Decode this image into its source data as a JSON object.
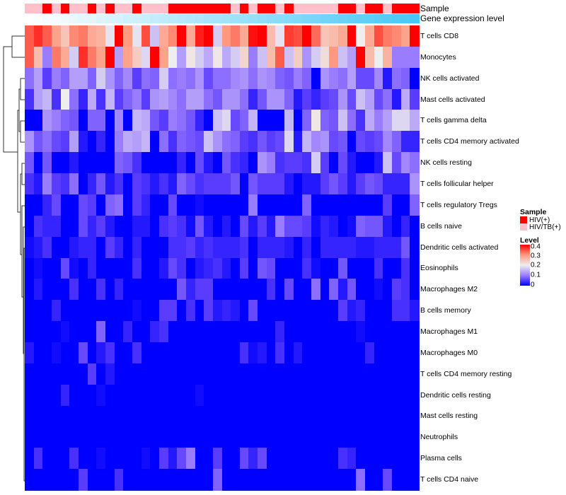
{
  "chart_data": {
    "type": "heatmap",
    "annotations": {
      "sample_label": "Sample",
      "gene_label": "Gene expression level",
      "sample": [
        "HIV/TB(+)",
        "HIV/TB(+)",
        "HIV(+)",
        "HIV/TB(+)",
        "HIV(+)",
        "HIV/TB(+)",
        "HIV/TB(+)",
        "HIV(+)",
        "HIV/TB(+)",
        "HIV(+)",
        "HIV/TB(+)",
        "HIV/TB(+)",
        "HIV(+)",
        "HIV/TB(+)",
        "HIV/TB(+)",
        "HIV/TB(+)",
        "HIV(+)",
        "HIV(+)",
        "HIV(+)",
        "HIV(+)",
        "HIV(+)",
        "HIV(+)",
        "HIV(+)",
        "HIV/TB(+)",
        "HIV(+)",
        "HIV/TB(+)",
        "HIV(+)",
        "HIV(+)",
        "HIV/TB(+)",
        "HIV(+)",
        "HIV/TB(+)",
        "HIV/TB(+)",
        "HIV/TB(+)",
        "HIV/TB(+)",
        "HIV/TB(+)",
        "HIV(+)",
        "HIV(+)",
        "HIV/TB(+)",
        "HIV(+)",
        "HIV(+)",
        "HIV/TB(+)",
        "HIV(+)",
        "HIV(+)",
        "HIV(+)"
      ],
      "gene_expression": [
        0,
        0.02,
        0.05,
        0.07,
        0.09,
        0.12,
        0.14,
        0.16,
        0.19,
        0.21,
        0.23,
        0.26,
        0.28,
        0.3,
        0.33,
        0.35,
        0.37,
        0.4,
        0.42,
        0.44,
        0.47,
        0.49,
        0.51,
        0.53,
        0.56,
        0.58,
        0.6,
        0.63,
        0.65,
        0.67,
        0.7,
        0.72,
        0.74,
        0.77,
        0.79,
        0.81,
        0.84,
        0.86,
        0.88,
        0.91,
        0.93,
        0.95,
        0.98,
        1
      ]
    },
    "rows": [
      {
        "label": "T cells CD8",
        "values": [
          0.34,
          0.37,
          0.34,
          0.29,
          0.25,
          0.31,
          0.32,
          0.28,
          0.27,
          0.19,
          0.4,
          0.3,
          0.19,
          0.35,
          0.16,
          0.28,
          0.31,
          0.4,
          0.28,
          0.38,
          0.4,
          0.17,
          0.3,
          0.32,
          0.28,
          0.39,
          0.4,
          0.26,
          0.19,
          0.36,
          0.35,
          0.4,
          0.33,
          0.25,
          0.26,
          0.28,
          0.4,
          0.2,
          0.28,
          0.35,
          0.32,
          0.31,
          0.29,
          0.4
        ]
      },
      {
        "label": "Monocytes",
        "values": [
          0.34,
          0.26,
          0.1,
          0.32,
          0.28,
          0.17,
          0.37,
          0.32,
          0.29,
          0.4,
          0.13,
          0.29,
          0.24,
          0.18,
          0.4,
          0.29,
          0.2,
          0.13,
          0.21,
          0.17,
          0.14,
          0.21,
          0.14,
          0.17,
          0.23,
          0.1,
          0.16,
          0.26,
          0.34,
          0.16,
          0.24,
          0.12,
          0.17,
          0.22,
          0.3,
          0.16,
          0.13,
          0.4,
          0.26,
          0.2,
          0.27,
          0.1,
          0.1,
          0.1
        ]
      },
      {
        "label": "NK cells activated",
        "values": [
          0.09,
          0.13,
          0.05,
          0.1,
          0.08,
          0.13,
          0.13,
          0.08,
          0.17,
          0.12,
          0.08,
          0.11,
          0.05,
          0.09,
          0.08,
          0.17,
          0.09,
          0.1,
          0.09,
          0.12,
          0.06,
          0.09,
          0.09,
          0.11,
          0.12,
          0.09,
          0.12,
          0.11,
          0.08,
          0.07,
          0.1,
          0.08,
          0,
          0.12,
          0.1,
          0.09,
          0.13,
          0.06,
          0.06,
          0.11,
          0.02,
          0.09,
          0.08,
          0
        ]
      },
      {
        "label": "Mast cells activated",
        "values": [
          0.04,
          0.13,
          0.15,
          0.04,
          0.2,
          0.09,
          0.03,
          0.14,
          0.04,
          0.15,
          0.05,
          0.08,
          0.1,
          0.05,
          0.12,
          0.13,
          0.11,
          0.09,
          0.13,
          0.13,
          0.09,
          0.07,
          0.12,
          0.12,
          0.09,
          0.03,
          0.07,
          0.12,
          0.12,
          0.08,
          0.02,
          0.05,
          0.03,
          0.05,
          0.06,
          0.12,
          0.06,
          0.16,
          0.13,
          0.06,
          0.09,
          0.02,
          0.14,
          0.05
        ]
      },
      {
        "label": "T cells gamma delta",
        "values": [
          0,
          0,
          0.12,
          0.1,
          0.08,
          0.07,
          0,
          0.08,
          0.08,
          0,
          0.11,
          0,
          0.15,
          0.14,
          0.07,
          0.05,
          0.1,
          0.09,
          0.07,
          0.03,
          0,
          0.16,
          0.18,
          0.06,
          0.08,
          0.15,
          0,
          0,
          0,
          0.15,
          0,
          0.08,
          0.21,
          0.08,
          0.07,
          0.16,
          0.09,
          0.04,
          0.14,
          0.1,
          0.13,
          0.18,
          0.18,
          0.14
        ]
      },
      {
        "label": "T cells CD4 memory activated",
        "values": [
          0.12,
          0.07,
          0.09,
          0.06,
          0.05,
          0.13,
          0.02,
          0,
          0.03,
          0,
          0.1,
          0.14,
          0.13,
          0.15,
          0,
          0.09,
          0.04,
          0.08,
          0.07,
          0.06,
          0.16,
          0.12,
          0.09,
          0.08,
          0.05,
          0.04,
          0.07,
          0.05,
          0.06,
          0.18,
          0.02,
          0.15,
          0.11,
          0.12,
          0.06,
          0.07,
          0,
          0.06,
          0.05,
          0.06,
          0.11,
          0.08,
          0.03,
          0.03
        ]
      },
      {
        "label": "NK cells resting",
        "values": [
          0.07,
          0,
          0.07,
          0,
          0,
          0.02,
          0,
          0,
          0,
          0,
          0.08,
          0.07,
          0.04,
          0,
          0,
          0,
          0,
          0.03,
          0,
          0.06,
          0.02,
          0,
          0.07,
          0.04,
          0.03,
          0,
          0.12,
          0.1,
          0.04,
          0.05,
          0.05,
          0.04,
          0.17,
          0.05,
          0,
          0.06,
          0.02,
          0,
          0,
          0.02,
          0.16,
          0.06,
          0.11,
          0.09
        ]
      },
      {
        "label": "T cells follicular helper",
        "values": [
          0.04,
          0.02,
          0.1,
          0.05,
          0.04,
          0.09,
          0,
          0.03,
          0.07,
          0.02,
          0.04,
          0,
          0.05,
          0.04,
          0.02,
          0.04,
          0.02,
          0.08,
          0.06,
          0.04,
          0.05,
          0.05,
          0.05,
          0.07,
          0,
          0.07,
          0.05,
          0.05,
          0.05,
          0.02,
          0,
          0.02,
          0.02,
          0.05,
          0.07,
          0.05,
          0.02,
          0.05,
          0.07,
          0.06,
          0.03,
          0.03,
          0.03,
          0.12
        ]
      },
      {
        "label": "T cells regulatory  Tregs",
        "values": [
          0,
          0,
          0.03,
          0.06,
          0,
          0,
          0.06,
          0.05,
          0,
          0.08,
          0.09,
          0,
          0.05,
          0.03,
          0,
          0,
          0.06,
          0,
          0,
          0.01,
          0,
          0,
          0,
          0,
          0,
          0.1,
          0,
          0,
          0,
          0,
          0,
          0.08,
          0,
          0,
          0,
          0,
          0,
          0,
          0,
          0,
          0.05,
          0,
          0,
          0.08
        ]
      },
      {
        "label": "B cells naive",
        "values": [
          0,
          0.04,
          0.03,
          0.03,
          0,
          0,
          0.06,
          0.03,
          0.05,
          0.02,
          0,
          0,
          0.02,
          0.02,
          0,
          0.04,
          0.05,
          0.04,
          0.01,
          0.07,
          0.02,
          0,
          0.02,
          0,
          0.06,
          0.02,
          0.05,
          0.02,
          0.1,
          0.06,
          0.06,
          0.05,
          0.01,
          0.03,
          0.02,
          0,
          0.01,
          0.08,
          0.07,
          0.07,
          0.02,
          0,
          0.03,
          0
        ]
      },
      {
        "label": "Dendritic cells activated",
        "values": [
          0.01,
          0.02,
          0.04,
          0,
          0,
          0.02,
          0.03,
          0.03,
          0,
          0.05,
          0.03,
          0,
          0.03,
          0,
          0,
          0,
          0.04,
          0.04,
          0.05,
          0.03,
          0.04,
          0.03,
          0.03,
          0.03,
          0.04,
          0,
          0.03,
          0.03,
          0.03,
          0.02,
          0,
          0.03,
          0,
          0.03,
          0.03,
          0.03,
          0.03,
          0.02,
          0.02,
          0.03,
          0.03,
          0.03,
          0.07,
          0
        ]
      },
      {
        "label": "Eosinophils",
        "values": [
          0,
          0.01,
          0,
          0,
          0.06,
          0.01,
          0,
          0.03,
          0,
          0,
          0,
          0,
          0.04,
          0,
          0,
          0.02,
          0.06,
          0.04,
          0,
          0.02,
          0.03,
          0.04,
          0.02,
          0,
          0.05,
          0,
          0.07,
          0.06,
          0,
          0,
          0,
          0.04,
          0.01,
          0,
          0,
          0.07,
          0,
          0,
          0,
          0.04,
          0,
          0,
          0.04,
          0
        ]
      },
      {
        "label": "Macrophages M2",
        "values": [
          0,
          0.02,
          0,
          0,
          0,
          0.04,
          0,
          0,
          0.04,
          0,
          0.03,
          0,
          0,
          0,
          0,
          0,
          0,
          0.07,
          0.03,
          0.05,
          0.05,
          0,
          0,
          0,
          0,
          0,
          0,
          0.04,
          0,
          0.06,
          0,
          0,
          0.09,
          0,
          0.08,
          0.02,
          0.07,
          0,
          0,
          0.01,
          0,
          0.05,
          0.04,
          0
        ]
      },
      {
        "label": "B cells memory",
        "values": [
          0,
          0,
          0,
          0.03,
          0,
          0,
          0,
          0,
          0,
          0,
          0,
          0,
          0.01,
          0,
          0,
          0.05,
          0.05,
          0,
          0.04,
          0,
          0.05,
          0.02,
          0.03,
          0.02,
          0,
          0.06,
          0,
          0,
          0,
          0,
          0,
          0,
          0,
          0,
          0,
          0.05,
          0.02,
          0.03,
          0,
          0,
          0,
          0.04,
          0.04,
          0.02
        ]
      },
      {
        "label": "Macrophages M1",
        "values": [
          0,
          0,
          0,
          0,
          0.01,
          0,
          0,
          0,
          0.08,
          0,
          0,
          0.03,
          0,
          0,
          0.03,
          0.04,
          0,
          0,
          0,
          0,
          0,
          0,
          0,
          0,
          0,
          0,
          0,
          0,
          0.03,
          0,
          0,
          0,
          0,
          0,
          0,
          0,
          0,
          0.01,
          0,
          0,
          0,
          0,
          0,
          0
        ]
      },
      {
        "label": "Macrophages M0",
        "values": [
          0.02,
          0,
          0,
          0.01,
          0,
          0,
          0.06,
          0,
          0.02,
          0.04,
          0,
          0,
          0.04,
          0,
          0,
          0,
          0,
          0,
          0,
          0,
          0,
          0,
          0,
          0,
          0.04,
          0.01,
          0.02,
          0,
          0.04,
          0,
          0.02,
          0,
          0,
          0,
          0,
          0,
          0,
          0,
          0.03,
          0,
          0,
          0,
          0,
          0
        ]
      },
      {
        "label": "T cells CD4 memory resting",
        "values": [
          0,
          0,
          0,
          0,
          0,
          0,
          0,
          0.05,
          0,
          0.02,
          0,
          0,
          0,
          0,
          0,
          0,
          0,
          0,
          0,
          0,
          0,
          0,
          0,
          0,
          0,
          0,
          0,
          0,
          0,
          0,
          0,
          0,
          0,
          0,
          0,
          0,
          0,
          0,
          0,
          0,
          0,
          0,
          0,
          0
        ]
      },
      {
        "label": "Dendritic cells resting",
        "values": [
          0,
          0,
          0,
          0,
          0.03,
          0,
          0,
          0,
          0.01,
          0,
          0,
          0,
          0,
          0,
          0,
          0,
          0,
          0,
          0,
          0.01,
          0,
          0,
          0,
          0,
          0,
          0,
          0,
          0,
          0,
          0,
          0,
          0,
          0,
          0,
          0,
          0,
          0,
          0,
          0,
          0,
          0,
          0,
          0,
          0
        ]
      },
      {
        "label": "Mast cells resting",
        "values": [
          0,
          0,
          0,
          0,
          0,
          0,
          0,
          0,
          0,
          0,
          0,
          0,
          0,
          0,
          0,
          0,
          0,
          0,
          0,
          0,
          0,
          0,
          0,
          0,
          0,
          0,
          0,
          0,
          0,
          0,
          0,
          0,
          0,
          0,
          0,
          0,
          0,
          0,
          0,
          0,
          0,
          0,
          0,
          0
        ]
      },
      {
        "label": "Neutrophils",
        "values": [
          0,
          0,
          0,
          0,
          0,
          0,
          0,
          0,
          0,
          0,
          0,
          0,
          0,
          0,
          0,
          0,
          0,
          0,
          0,
          0,
          0,
          0,
          0,
          0,
          0,
          0,
          0,
          0,
          0,
          0,
          0,
          0,
          0,
          0,
          0,
          0,
          0,
          0,
          0,
          0,
          0,
          0,
          0,
          0
        ]
      },
      {
        "label": "Plasma cells",
        "values": [
          0,
          0.04,
          0,
          0,
          0,
          0.04,
          0,
          0,
          0.01,
          0,
          0,
          0,
          0,
          0.01,
          0,
          0.05,
          0.02,
          0.06,
          0.1,
          0,
          0,
          0.05,
          0,
          0,
          0.06,
          0.03,
          0.06,
          0,
          0,
          0,
          0,
          0,
          0,
          0,
          0,
          0.04,
          0.03,
          0,
          0,
          0,
          0,
          0,
          0,
          0
        ]
      },
      {
        "label": "T cells CD4 naive",
        "values": [
          0,
          0,
          0,
          0,
          0,
          0,
          0.05,
          0,
          0,
          0,
          0.04,
          0,
          0,
          0,
          0,
          0,
          0,
          0,
          0,
          0,
          0,
          0.08,
          0,
          0,
          0,
          0,
          0,
          0,
          0,
          0,
          0,
          0,
          0,
          0,
          0,
          0,
          0,
          0.09,
          0,
          0,
          0.06,
          0,
          0,
          0
        ]
      }
    ],
    "legend": {
      "sample_title": "Sample",
      "sample_items": [
        {
          "label": "HIV(+)",
          "color": "#FF0000"
        },
        {
          "label": "HIV/TB(+)",
          "color": "#FFC0CB"
        }
      ],
      "level_title": "Level",
      "level_ticks": [
        "0.4",
        "0.3",
        "0.2",
        "0.1",
        "0"
      ],
      "level_range": [
        0,
        0.4
      ]
    },
    "colors": {
      "low": "#0000FF",
      "mid": "#EEEEEE",
      "high": "#FF0000",
      "gene_low": "#FFFFFF",
      "gene_high": "#48C8F5"
    }
  }
}
